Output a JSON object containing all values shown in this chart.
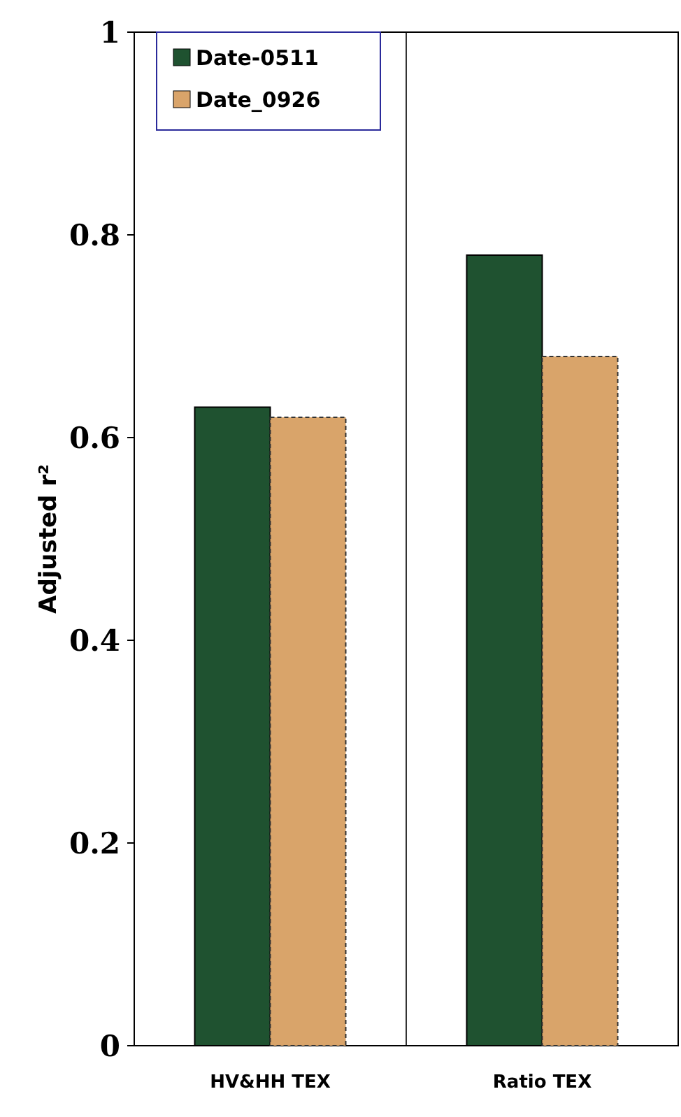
{
  "chart_data": {
    "type": "bar",
    "ylabel": "Adjusted r²",
    "categories": [
      "HV&HH TEX",
      "Ratio TEX"
    ],
    "series": [
      {
        "name": "Date-0511",
        "color": "#1f5230",
        "values": [
          0.63,
          0.78
        ]
      },
      {
        "name": "Date_0926",
        "color": "#d9a46a",
        "values": [
          0.62,
          0.68
        ]
      }
    ],
    "ylim": [
      0,
      1
    ],
    "yticks": [
      0,
      0.2,
      0.4,
      0.6,
      0.8,
      1
    ],
    "legend": "top left"
  }
}
